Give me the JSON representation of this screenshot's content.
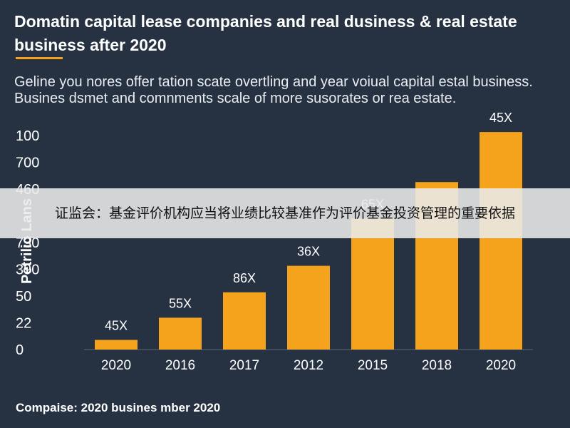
{
  "header": {
    "title": "Domatin capital lease companies and real dusiness & real estate business after 2020",
    "subtitle": "Geline you nores offer tation scate overtling and year voiual capital estal business. Busines dsmet and comnments scale of more susorates or rea estate."
  },
  "overlay": {
    "text": "证监会：基金评价机构应当将业绩比较基准作为评价基金投资管理的重要依据"
  },
  "footer": {
    "text": "Compaise: 2020 busines mber 2020"
  },
  "colors": {
    "background": "#263142",
    "bar": "#f5a21c",
    "text": "#ffffff"
  },
  "chart_data": {
    "type": "bar",
    "title": "",
    "xlabel": "",
    "ylabel": "Petrilio Lans",
    "categories": [
      "2020",
      "2016",
      "2017",
      "2012",
      "2015",
      "2018",
      "2020"
    ],
    "values": [
      0.36,
      1.19,
      2.14,
      3.13,
      4.9,
      6.26,
      8.13
    ],
    "data_labels": [
      "45X",
      "55X",
      "86X",
      "36X",
      "65X",
      "",
      "45X"
    ],
    "y_tick_labels": [
      "0",
      "22",
      "50",
      "390",
      "730",
      "",
      "460",
      "700",
      "100"
    ],
    "y_tick_positions": [
      0,
      1,
      2,
      3,
      4,
      5,
      6,
      7,
      8
    ],
    "ylim": [
      0,
      8
    ],
    "grid": false,
    "legend": "none"
  }
}
